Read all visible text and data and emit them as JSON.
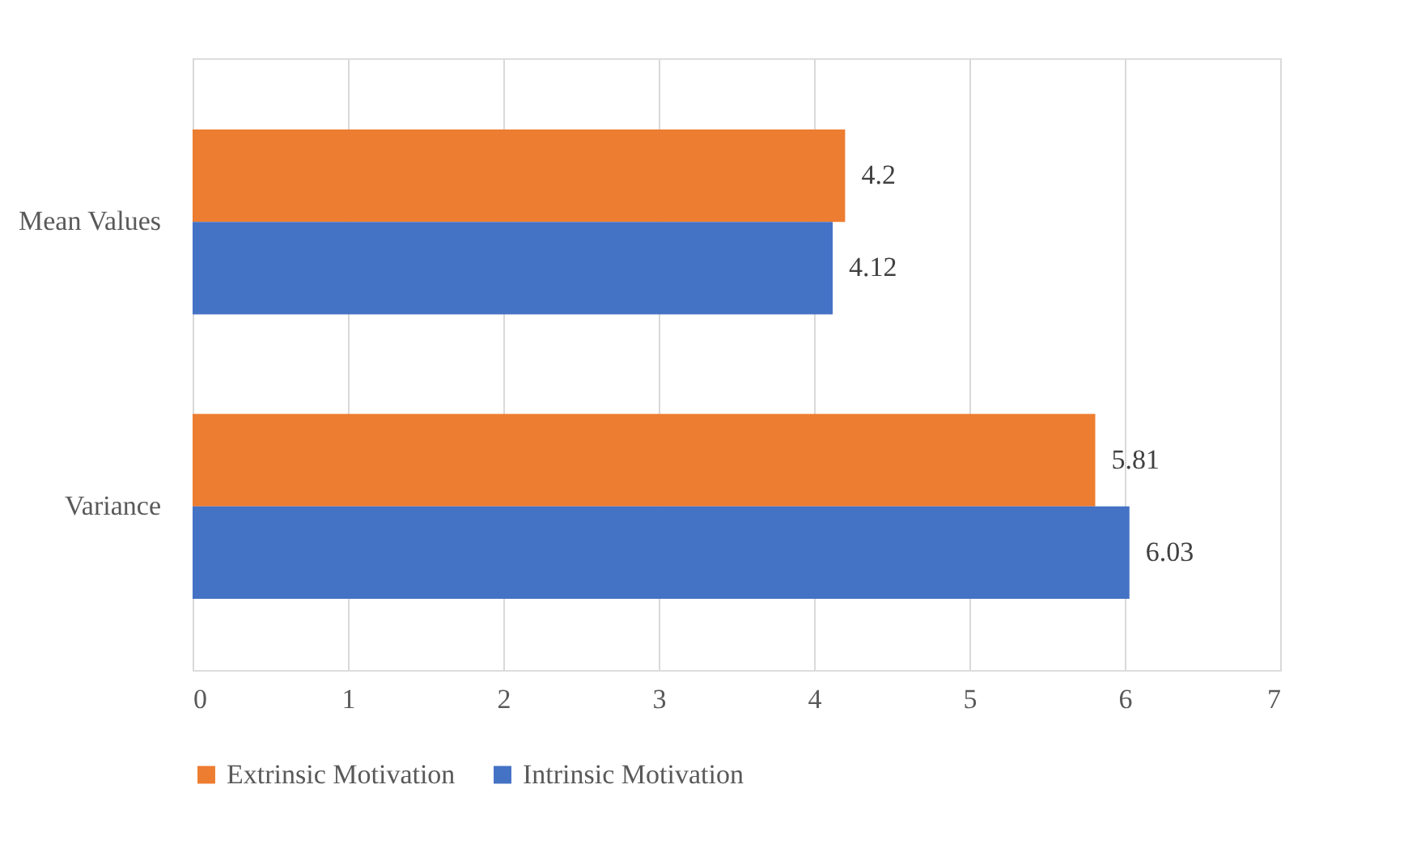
{
  "chart_data": {
    "type": "bar",
    "orientation": "horizontal",
    "categories": [
      "Mean Values",
      "Variance"
    ],
    "series": [
      {
        "name": "Extrinsic Motivation",
        "color": "#ed7d31",
        "values": [
          4.2,
          5.81
        ]
      },
      {
        "name": "Intrinsic Motivation",
        "color": "#4472c4",
        "values": [
          4.12,
          6.03
        ]
      }
    ],
    "xlim": [
      0,
      7
    ],
    "xticks": [
      0,
      1,
      2,
      3,
      4,
      5,
      6,
      7
    ],
    "grid": "x",
    "legend": "bottom",
    "data_labels": true
  }
}
